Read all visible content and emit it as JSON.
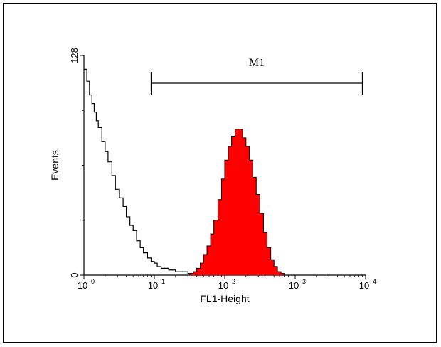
{
  "chart_data": {
    "type": "area",
    "title": "",
    "xlabel": "FL1-Height",
    "ylabel": "Events",
    "x_scale": "log",
    "xlim": [
      1,
      10000
    ],
    "ylim": [
      0,
      128
    ],
    "x_ticks": [
      {
        "value": 1,
        "base": "10",
        "exp": "0"
      },
      {
        "value": 10,
        "base": "10",
        "exp": "1"
      },
      {
        "value": 100,
        "base": "10",
        "exp": "2"
      },
      {
        "value": 1000,
        "base": "10",
        "exp": "3"
      },
      {
        "value": 10000,
        "base": "10",
        "exp": "4"
      }
    ],
    "y_ticks": [
      {
        "value": 0,
        "label": "0"
      },
      {
        "value": 128,
        "label": "128"
      }
    ],
    "y_minor_ticks": [
      32,
      64,
      96
    ],
    "grid": false,
    "marker": {
      "label": "M1",
      "x_start": 9,
      "x_end": 9000
    },
    "series": [
      {
        "style": "outline",
        "color": "#000000",
        "x": [
          1,
          1.1,
          1.2,
          1.3,
          1.4,
          1.5,
          1.6,
          1.8,
          2.0,
          2.2,
          2.5,
          2.8,
          3.2,
          3.6,
          4.0,
          4.5,
          5.0,
          5.6,
          6.3,
          7.0,
          8.0,
          9.0,
          10,
          11,
          12.5,
          14,
          16,
          18,
          20,
          25,
          30,
          35,
          40,
          50
        ],
        "y": [
          120,
          113,
          105,
          100,
          95,
          90,
          86,
          78,
          72,
          66,
          58,
          50,
          45,
          40,
          34,
          29,
          26,
          20,
          16,
          13,
          10,
          8,
          7,
          5,
          4,
          4,
          3,
          3,
          2,
          2,
          1,
          1,
          0,
          0
        ]
      },
      {
        "style": "filled",
        "color": "#ff0000",
        "x": [
          28,
          32,
          36,
          40,
          45,
          50,
          56,
          63,
          70,
          80,
          90,
          100,
          112,
          125,
          140,
          160,
          180,
          200,
          224,
          250,
          280,
          316,
          355,
          400,
          450,
          500,
          560,
          630,
          700
        ],
        "y": [
          0,
          1,
          2,
          4,
          7,
          12,
          17,
          24,
          32,
          44,
          56,
          67,
          75,
          81,
          85,
          85,
          80,
          75,
          67,
          57,
          47,
          36,
          25,
          16,
          9,
          5,
          2,
          1,
          0
        ]
      }
    ]
  }
}
